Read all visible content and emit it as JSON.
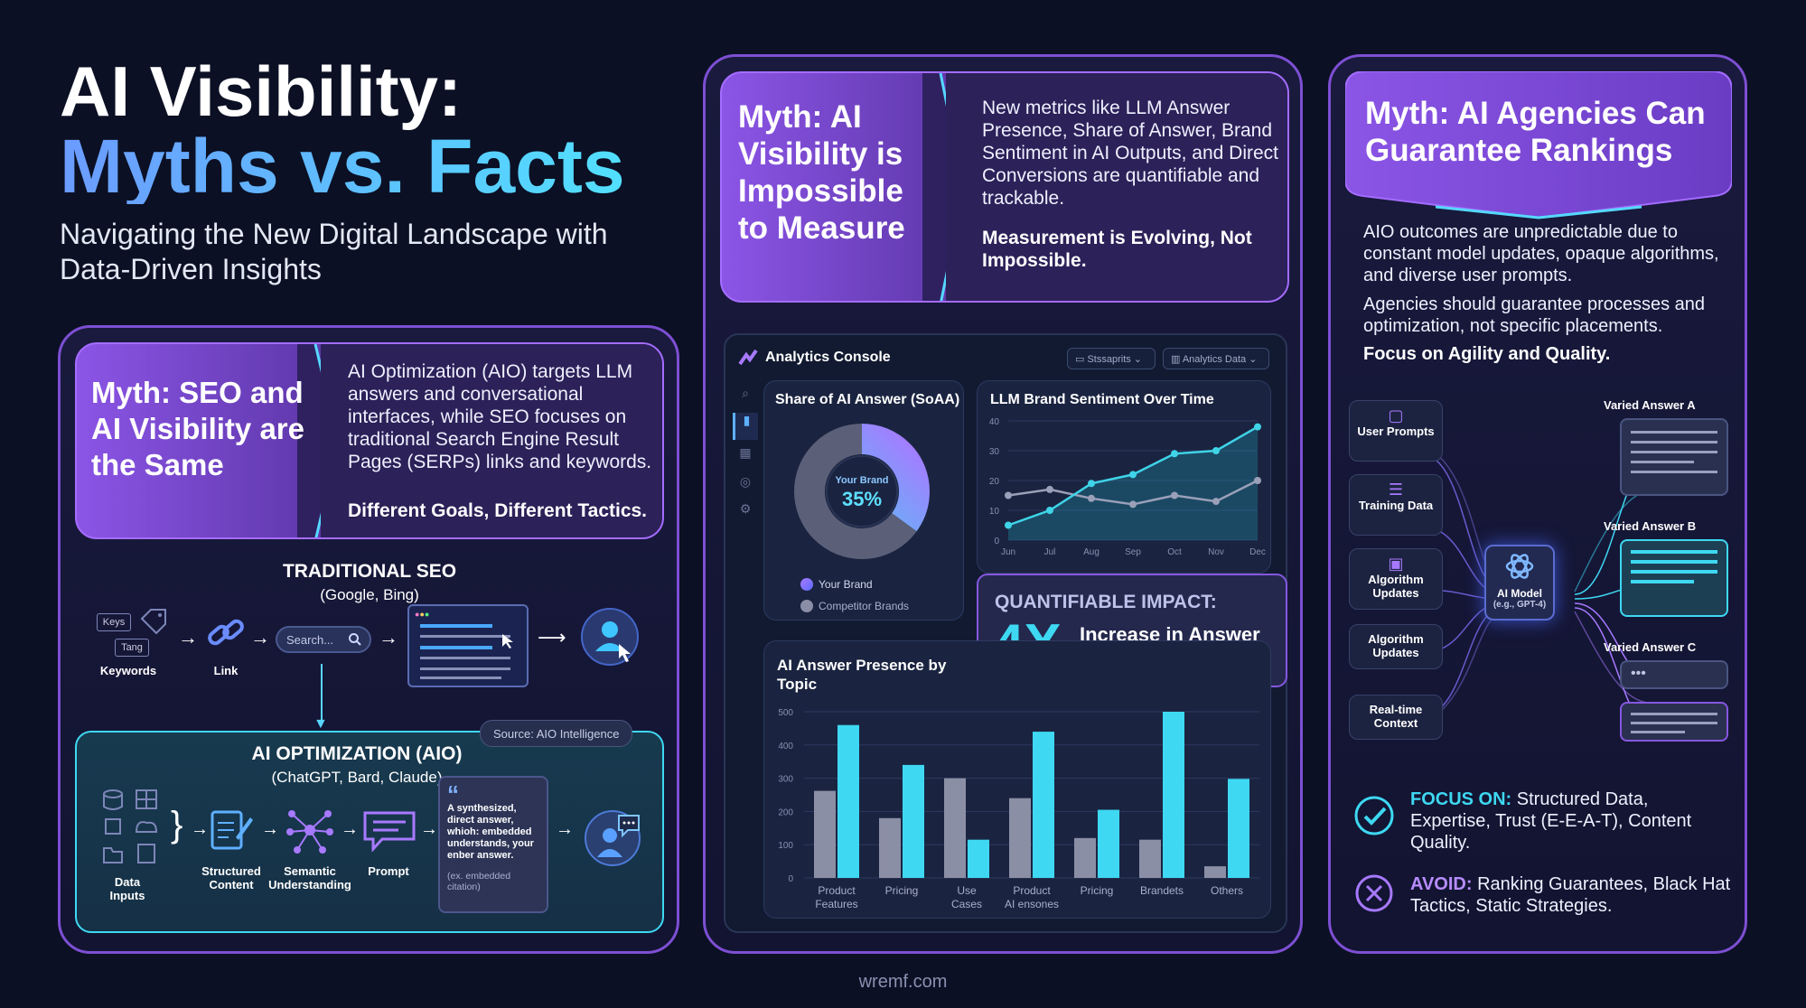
{
  "header": {
    "title_line1": "AI Visibility:",
    "title_line2": "Myths vs. Facts",
    "subtitle": "Navigating the New Digital Landscape with Data-Driven Insights"
  },
  "myth1": {
    "myth": "Myth: SEO and AI Visibility are the Same",
    "desc": "AI Optimization (AIO) targets LLM answers and conversational interfaces, while SEO focuses on traditional Search Engine Result Pages (SERPs) links and keywords.",
    "bold": "Different Goals, Different Tactics."
  },
  "seo": {
    "title": "TRADITIONAL SEO",
    "sub": "(Google, Bing)",
    "keys_tag": "Keys",
    "tang_tag": "Tang",
    "keywords": "Keywords",
    "link": "Link",
    "search": "Search..."
  },
  "aio": {
    "source": "Source: AIO Intelligence",
    "title": "AI OPTIMIZATION (AIO)",
    "sub": "(ChatGPT, Bard, Claude)",
    "data_inputs": "Data Inputs",
    "structured": "Structured Content",
    "semantic": "Semantic Understanding",
    "prompt": "Prompt",
    "answer_text": "A synthesized, direct answer, whioh: embedded understands, your enber answer.",
    "answer_cite": "(ex. embedded citation)"
  },
  "myth2": {
    "myth": "Myth: AI Visibility is Impossible to Measure",
    "desc": "New metrics like LLM Answer Presence, Share of Answer, Brand Sentiment in AI Outputs, and Direct Conversions are quantifiable and trackable.",
    "bold": "Measurement is Evolving, Not Impossible."
  },
  "console": {
    "title": "Analytics Console",
    "pill1": "Stssaprits",
    "pill2": "Analytics Data",
    "soaa_title": "Share of AI Answer (SoAA)",
    "donut_label": "Your Brand",
    "donut_value": "35%",
    "legend_brand": "Your Brand",
    "legend_comp": "Competitor Brands",
    "impact_title": "QUANTIFIABLE IMPACT:",
    "impact_big": "4X",
    "impact_text": "Increase in Answer Appearances"
  },
  "myth3": {
    "myth": "Myth: AI Agencies Can Guarantee Rankings",
    "p1": "AIO outcomes are unpredictable due to constant model updates, opaque algorithms, and diverse user prompts.",
    "p2": "Agencies should guarantee processes and optimization, not specific placements.",
    "bold": "Focus on Agility and Quality."
  },
  "model": {
    "inputs": [
      "User Prompts",
      "Training Data",
      "Algorithm Updates",
      "Algorithm Updates",
      "Real-time Context"
    ],
    "model_label": "AI Model",
    "model_sub": "(e.g., GPT-4)",
    "answer_a": "Varied Answer A",
    "answer_b": "Varied Answer B",
    "answer_c": "Varied Answer C"
  },
  "focus": {
    "label": "FOCUS ON:",
    "text": "Structured Data, Expertise, Trust (E-E-A-T), Content Quality."
  },
  "avoid": {
    "label": "AVOID:",
    "text": "Ranking Guarantees, Black Hat Tactics, Static Strategies."
  },
  "footer": "wremf.com",
  "chart_data": [
    {
      "type": "pie",
      "title": "Share of AI Answer (SoAA)",
      "categories": [
        "Your Brand",
        "Competitor Brands"
      ],
      "values": [
        35,
        65
      ]
    },
    {
      "type": "line",
      "title": "LLM Brand Sentiment Over Time",
      "x": [
        "Jun",
        "Jul",
        "Aug",
        "Sep",
        "Oct",
        "Nov",
        "Dec"
      ],
      "yticks": [
        0,
        10,
        20,
        30,
        40
      ],
      "ylim": [
        0,
        40
      ],
      "series": [
        {
          "values": [
            5,
            10,
            19,
            22,
            29,
            30,
            38
          ],
          "color": "#3fd4e8"
        },
        {
          "values": [
            15,
            17,
            14,
            12,
            15,
            13,
            20
          ],
          "color": "#9aa0b8"
        }
      ]
    },
    {
      "type": "bar",
      "title": "AI Answer Presence by Topic",
      "categories": [
        "Product Features",
        "Pricing",
        "Use Cases",
        "Product AI ensones",
        "Pricing",
        "Brandets",
        "Others"
      ],
      "yticks": [
        0,
        100,
        200,
        300,
        400,
        500
      ],
      "ylim": [
        0,
        500
      ],
      "series": [
        {
          "values": [
            262,
            180,
            300,
            240,
            120,
            115,
            35
          ],
          "color": "#8b8fa6"
        },
        {
          "values": [
            460,
            340,
            115,
            440,
            205,
            500,
            298
          ],
          "color": "#3ed8f2"
        }
      ]
    }
  ]
}
